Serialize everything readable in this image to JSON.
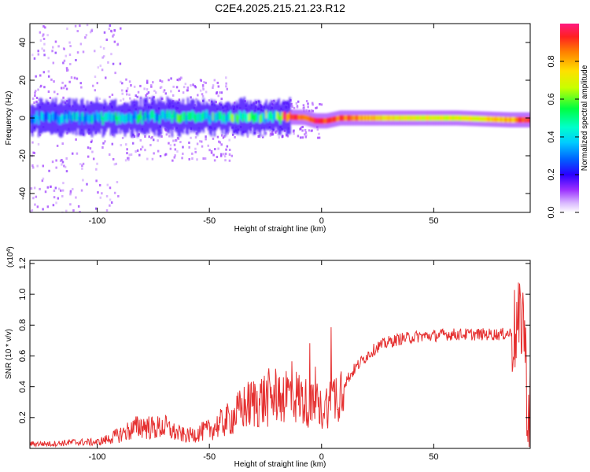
{
  "title": "C2E4.2025.215.21.23.R12",
  "chart_data": [
    {
      "type": "heatmap",
      "xlabel": "Height of straight line (km)",
      "ylabel": "Frequency (Hz)",
      "xlim": [
        -130,
        93
      ],
      "ylim": [
        -50,
        50
      ],
      "xticks": [
        -100,
        -50,
        0,
        50
      ],
      "yticks": [
        -40,
        -20,
        0,
        20,
        40
      ],
      "colorbar": {
        "label": "Normalized spectral amplitude",
        "range": [
          0.0,
          1.0
        ],
        "ticks": [
          0.0,
          0.2,
          0.4,
          0.6,
          0.8
        ]
      },
      "ridge": [
        {
          "x": -128,
          "y": 0,
          "amp": 0.35
        },
        {
          "x": -110,
          "y": 0,
          "amp": 0.38
        },
        {
          "x": -95,
          "y": 0,
          "amp": 0.42
        },
        {
          "x": -80,
          "y": 0.5,
          "amp": 0.45
        },
        {
          "x": -65,
          "y": 0.5,
          "amp": 0.48
        },
        {
          "x": -50,
          "y": 0.5,
          "amp": 0.5
        },
        {
          "x": -35,
          "y": 0.5,
          "amp": 0.5
        },
        {
          "x": -20,
          "y": 0.5,
          "amp": 0.55
        },
        {
          "x": -15,
          "y": 0.5,
          "amp": 0.95
        },
        {
          "x": -8,
          "y": 0.3,
          "amp": 0.9
        },
        {
          "x": -3,
          "y": -1.5,
          "amp": 0.95
        },
        {
          "x": 2,
          "y": -1.5,
          "amp": 0.95
        },
        {
          "x": 8,
          "y": 0,
          "amp": 0.9
        },
        {
          "x": 30,
          "y": 0,
          "amp": 0.75
        },
        {
          "x": 60,
          "y": 0,
          "amp": 0.7
        },
        {
          "x": 84,
          "y": -1,
          "amp": 0.8
        },
        {
          "x": 90,
          "y": -1,
          "amp": 0.95
        }
      ]
    },
    {
      "type": "line",
      "xlabel": "Height of straight line (km)",
      "ylabel": "SNR (10 * v/v)",
      "yscale_label": "(x10^4)",
      "xlim": [
        -130,
        93
      ],
      "ylim": [
        0,
        1.22
      ],
      "xticks": [
        -100,
        -50,
        0,
        50
      ],
      "yticks": [
        0.2,
        0.4,
        0.6,
        0.8,
        1.0,
        1.2
      ],
      "line_color": "#e53030",
      "series": [
        {
          "x": [
            -130,
            -120,
            -110,
            -100,
            -95,
            -90,
            -85,
            -80,
            -75,
            -70,
            -65,
            -60,
            -55,
            -50,
            -45,
            -40,
            -35,
            -30,
            -25,
            -20,
            -15,
            -10,
            -5,
            0,
            5,
            10,
            15,
            20,
            25,
            30,
            35,
            40,
            45,
            50,
            55,
            60,
            65,
            70,
            75,
            80,
            85,
            88,
            90,
            91,
            92,
            93
          ],
          "y": [
            0.03,
            0.03,
            0.04,
            0.04,
            0.06,
            0.09,
            0.12,
            0.15,
            0.13,
            0.14,
            0.1,
            0.08,
            0.1,
            0.12,
            0.16,
            0.2,
            0.26,
            0.3,
            0.32,
            0.34,
            0.36,
            0.33,
            0.28,
            0.25,
            0.32,
            0.42,
            0.52,
            0.6,
            0.66,
            0.69,
            0.71,
            0.72,
            0.73,
            0.73,
            0.74,
            0.74,
            0.74,
            0.74,
            0.74,
            0.74,
            0.75,
            0.78,
            0.9,
            0.55,
            0.2,
            0.3
          ]
        }
      ]
    }
  ]
}
